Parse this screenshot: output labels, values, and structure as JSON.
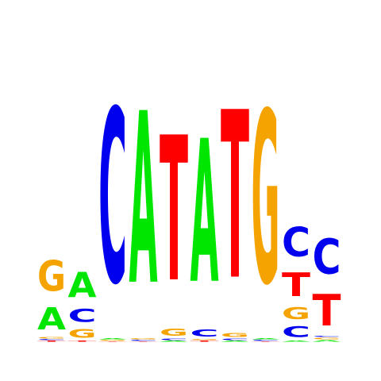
{
  "motif": {
    "columns": [
      {
        "letters": [
          {
            "base": "T",
            "height": 2
          },
          {
            "base": "C",
            "height": 2
          },
          {
            "base": "G",
            "height": 3
          },
          {
            "base": "A",
            "height": 45
          },
          {
            "base": "G",
            "height": 62
          }
        ]
      },
      {
        "letters": [
          {
            "base": "T",
            "height": 2
          },
          {
            "base": "G",
            "height": 18
          },
          {
            "base": "C",
            "height": 26
          },
          {
            "base": "A",
            "height": 51
          }
        ]
      },
      {
        "letters": [
          {
            "base": "T",
            "height": 1
          },
          {
            "base": "G",
            "height": 2
          },
          {
            "base": "A",
            "height": 2
          },
          {
            "base": "C",
            "height": 351
          }
        ]
      },
      {
        "letters": [
          {
            "base": "T",
            "height": 1
          },
          {
            "base": "C",
            "height": 2
          },
          {
            "base": "G",
            "height": 2
          },
          {
            "base": "A",
            "height": 347
          }
        ]
      },
      {
        "letters": [
          {
            "base": "A",
            "height": 2
          },
          {
            "base": "C",
            "height": 3
          },
          {
            "base": "G",
            "height": 14
          },
          {
            "base": "T",
            "height": 293
          }
        ]
      },
      {
        "letters": [
          {
            "base": "T",
            "height": 2
          },
          {
            "base": "G",
            "height": 2
          },
          {
            "base": "C",
            "height": 14
          },
          {
            "base": "A",
            "height": 289
          }
        ]
      },
      {
        "letters": [
          {
            "base": "A",
            "height": 2
          },
          {
            "base": "C",
            "height": 3
          },
          {
            "base": "G",
            "height": 8
          },
          {
            "base": "T",
            "height": 339
          }
        ]
      },
      {
        "letters": [
          {
            "base": "T",
            "height": 1
          },
          {
            "base": "C",
            "height": 2
          },
          {
            "base": "A",
            "height": 2
          },
          {
            "base": "G",
            "height": 348
          }
        ]
      },
      {
        "letters": [
          {
            "base": "A",
            "height": 2
          },
          {
            "base": "C",
            "height": 22
          },
          {
            "base": "G",
            "height": 24
          },
          {
            "base": "T",
            "height": 48
          },
          {
            "base": "C",
            "height": 59
          }
        ]
      },
      {
        "letters": [
          {
            "base": "A",
            "height": 3
          },
          {
            "base": "G",
            "height": 3
          },
          {
            "base": "C",
            "height": 2
          },
          {
            "base": "T",
            "height": 64
          },
          {
            "base": "C",
            "height": 71
          }
        ]
      }
    ],
    "colors": {
      "A": "#00e600",
      "C": "#0000ee",
      "G": "#f5a300",
      "T": "#ff0000"
    }
  }
}
